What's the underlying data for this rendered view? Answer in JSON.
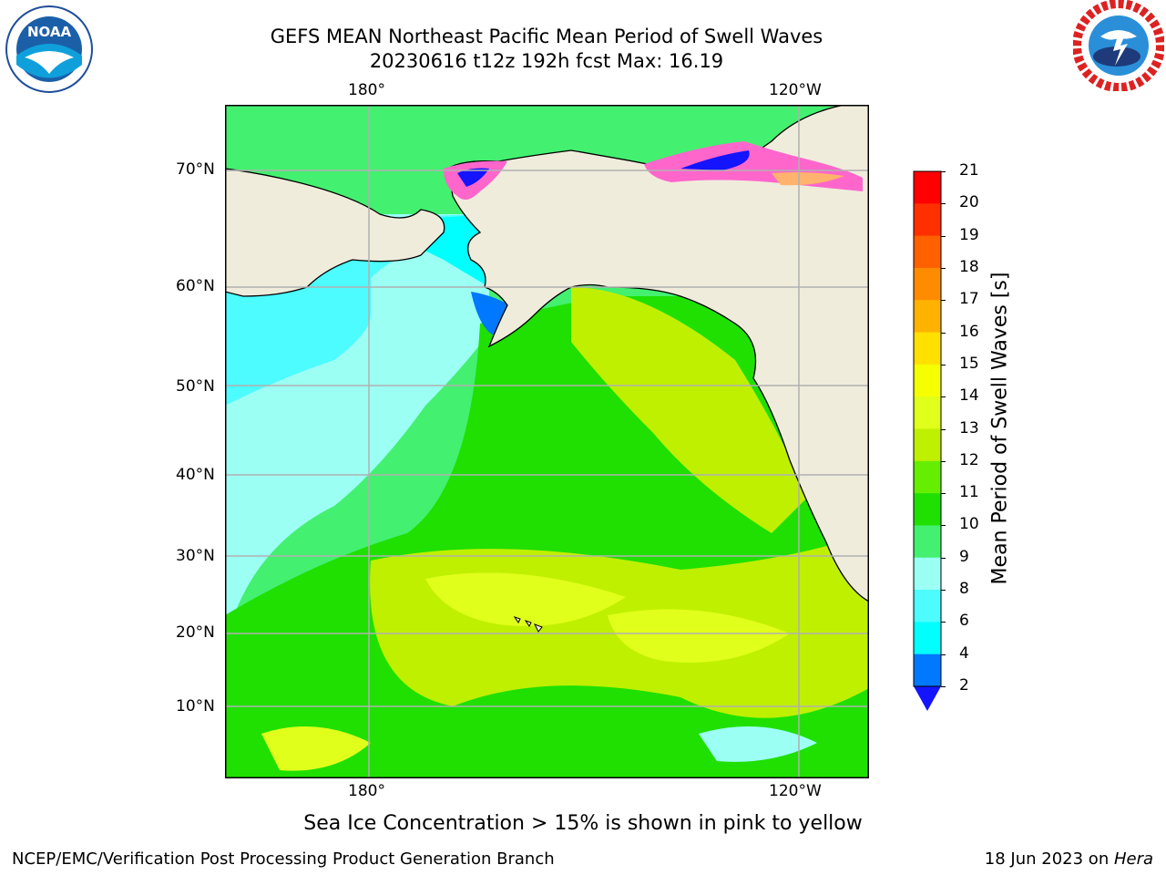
{
  "header": {
    "title_line1": "GEFS MEAN Northeast Pacific Mean Period of Swell Waves",
    "title_line2": "20230616 t12z 192h fcst   Max: 16.19"
  },
  "logos": {
    "left": {
      "text": "NOAA",
      "ring_text": "NATIONAL OCEANIC AND ATMOSPHERIC ADMINISTRATION · U.S. DEPARTMENT OF COMMERCE"
    },
    "right": {
      "ring_text": "NATIONAL WEATHER SERVICE"
    }
  },
  "map": {
    "lon_labels_top": [
      "180°",
      "120°W"
    ],
    "lon_labels_bottom": [
      "180°",
      "120°W"
    ],
    "lat_labels": [
      "70°N",
      "60°N",
      "50°N",
      "40°N",
      "30°N",
      "20°N",
      "10°N"
    ],
    "colors": {
      "land": "#efecdc",
      "grid": "#b0b0b0"
    }
  },
  "colorbar": {
    "label": "Mean Period of Swell Waves [s]",
    "ticks": [
      "21",
      "20",
      "19",
      "18",
      "17",
      "16",
      "15",
      "14",
      "13",
      "12",
      "11",
      "10",
      "9",
      "8",
      "6",
      "4",
      "2"
    ],
    "colors": [
      "#ff0000",
      "#ff3000",
      "#ff6000",
      "#ff8c00",
      "#ffb300",
      "#ffe000",
      "#f6ff00",
      "#e0ff1a",
      "#bff000",
      "#66ee00",
      "#1fe000",
      "#44f070",
      "#9cfff4",
      "#4cfcff",
      "#00ffff",
      "#0078ff"
    ],
    "extend_color": "#1414ff"
  },
  "caption": "Sea Ice Concentration > 15% is shown in pink to yellow",
  "footer": {
    "left": "NCEP/EMC/Verification Post Processing Product Generation Branch",
    "right_date": "18 Jun 2023 on ",
    "right_machine": "Hera"
  }
}
